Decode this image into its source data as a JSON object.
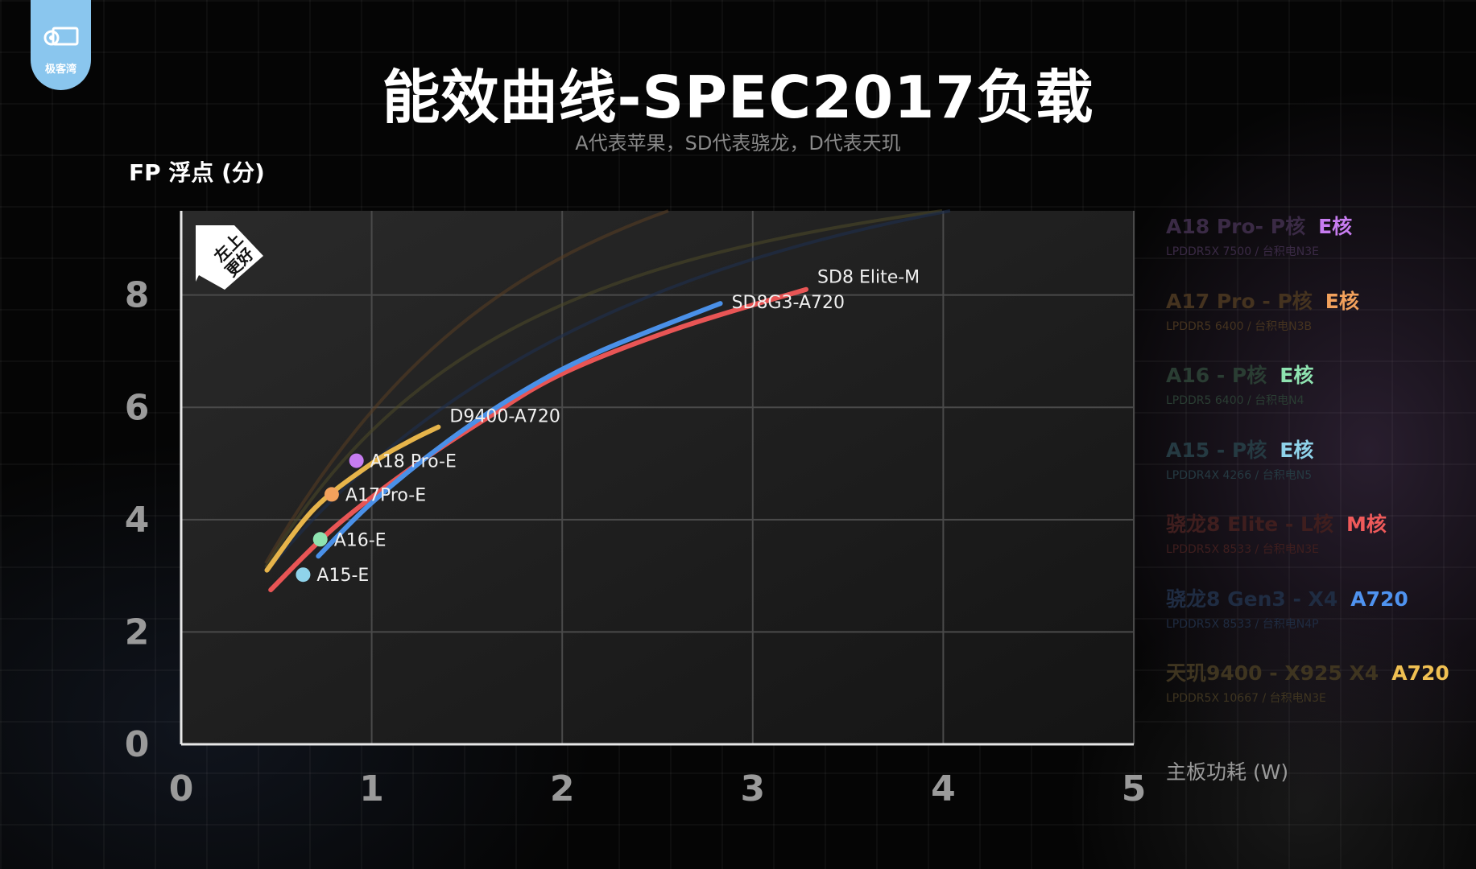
{
  "brand": {
    "name": "极客湾"
  },
  "title": "能效曲线-SPEC2017负载",
  "subtitle": "A代表苹果，SD代表骁龙，D代表天玑",
  "corner_badge": [
    "左上",
    "更好"
  ],
  "legend": [
    {
      "name": "A18 Pro- P核",
      "tag": "E核",
      "sub": "LPDDR5X 7500 / 台积电N3E",
      "tagColor": "#c77cf0",
      "nameColor": "#3a2a45"
    },
    {
      "name": "A17 Pro - P核",
      "tag": "E核",
      "sub": "LPDDR5 6400 / 台积电N3B",
      "tagColor": "#f2a15c",
      "nameColor": "#45331f"
    },
    {
      "name": "A16 - P核",
      "tag": "E核",
      "sub": "LPDDR5 6400 / 台积电N4",
      "tagColor": "#8ee3b0",
      "nameColor": "#2a3d33"
    },
    {
      "name": "A15 - P核",
      "tag": "E核",
      "sub": "LPDDR4X 4266 / 台积电N5",
      "tagColor": "#8fd3ea",
      "nameColor": "#253a42"
    },
    {
      "name": "骁龙8 Elite - L核",
      "tag": "M核",
      "sub": "LPDDR5X 8533 / 台积电N3E",
      "tagColor": "#ef5a5a",
      "nameColor": "#3f1e1e"
    },
    {
      "name": "骁龙8 Gen3 - X4",
      "tag": "A720",
      "sub": "LPDDR5X 8533 / 台积电N4P",
      "tagColor": "#4f93f0",
      "nameColor": "#1f2c42"
    },
    {
      "name": "天玑9400 - X925   X4",
      "tag": "A720",
      "sub": "LPDDR5X 10667 / 台积电N3E",
      "tagColor": "#f0c052",
      "nameColor": "#3f3520"
    }
  ],
  "chart_data": {
    "type": "line",
    "xlabel": "主板功耗 (W)",
    "ylabel": "FP 浮点 (分)",
    "xlim": [
      0,
      5
    ],
    "ylim": [
      0,
      9.5
    ],
    "x_ticks": [
      "0",
      "1",
      "2",
      "3",
      "4",
      "5"
    ],
    "y_ticks": [
      "0",
      "2",
      "4",
      "6",
      "8"
    ],
    "grid": true,
    "series": [
      {
        "name": "D9400-A720",
        "color": "#e6b44a",
        "x": [
          0.45,
          0.7,
          1.0,
          1.2,
          1.35
        ],
        "y": [
          3.1,
          4.2,
          5.0,
          5.4,
          5.65
        ]
      },
      {
        "name": "SD8 Elite-M",
        "color": "#e85555",
        "x": [
          0.47,
          0.8,
          1.2,
          1.6,
          2.0,
          2.6,
          3.28
        ],
        "y": [
          2.75,
          3.85,
          4.9,
          5.8,
          6.6,
          7.4,
          8.1
        ]
      },
      {
        "name": "SD8G3-A720",
        "color": "#4a90e8",
        "x": [
          0.72,
          1.0,
          1.4,
          1.8,
          2.2,
          2.83
        ],
        "y": [
          3.35,
          4.3,
          5.4,
          6.3,
          7.0,
          7.85
        ]
      }
    ],
    "points": [
      {
        "name": "A18 Pro-E",
        "x": 0.92,
        "y": 5.05,
        "color": "#c77cf0"
      },
      {
        "name": "A17Pro-E",
        "x": 0.79,
        "y": 4.45,
        "color": "#f2a15c"
      },
      {
        "name": "A16-E",
        "x": 0.73,
        "y": 3.65,
        "color": "#8ee3b0"
      },
      {
        "name": "A15-E",
        "x": 0.64,
        "y": 3.02,
        "color": "#8fd3ea"
      }
    ]
  }
}
